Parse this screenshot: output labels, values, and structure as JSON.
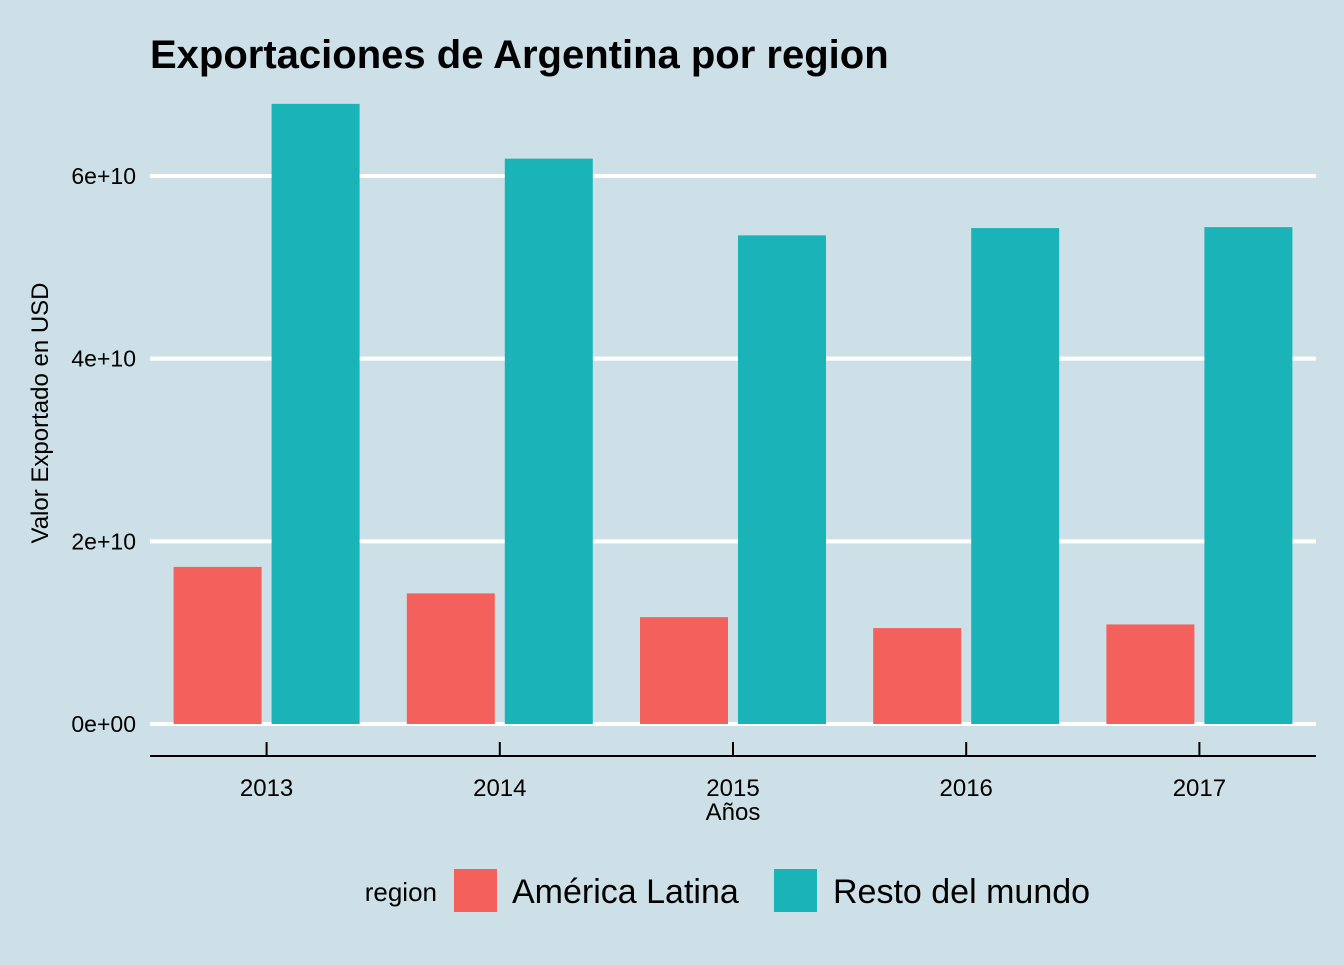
{
  "chart_data": {
    "type": "bar",
    "title": "Exportaciones de Argentina por region",
    "xlabel": "Años",
    "ylabel": "Valor Exportado en USD",
    "categories": [
      "2013",
      "2014",
      "2015",
      "2016",
      "2017"
    ],
    "series": [
      {
        "name": "América Latina",
        "color": "#f4605c",
        "values": [
          17200000000,
          14300000000,
          11700000000,
          10500000000,
          10900000000
        ]
      },
      {
        "name": "Resto del mundo",
        "color": "#1ab4b8",
        "values": [
          67900000000,
          61900000000,
          53500000000,
          54300000000,
          54400000000
        ]
      }
    ],
    "ylim": [
      0,
      68000000000
    ],
    "yticks": [
      {
        "value": 0,
        "label": "0e+00"
      },
      {
        "value": 20000000000,
        "label": "2e+10"
      },
      {
        "value": 40000000000,
        "label": "4e+10"
      },
      {
        "value": 60000000000,
        "label": "6e+10"
      }
    ],
    "grid": "horizontal",
    "legend": {
      "title": "region",
      "position": "bottom"
    },
    "colors": {
      "background": "#cde0e7",
      "grid": "#ffffff",
      "axis": "#000000"
    }
  }
}
